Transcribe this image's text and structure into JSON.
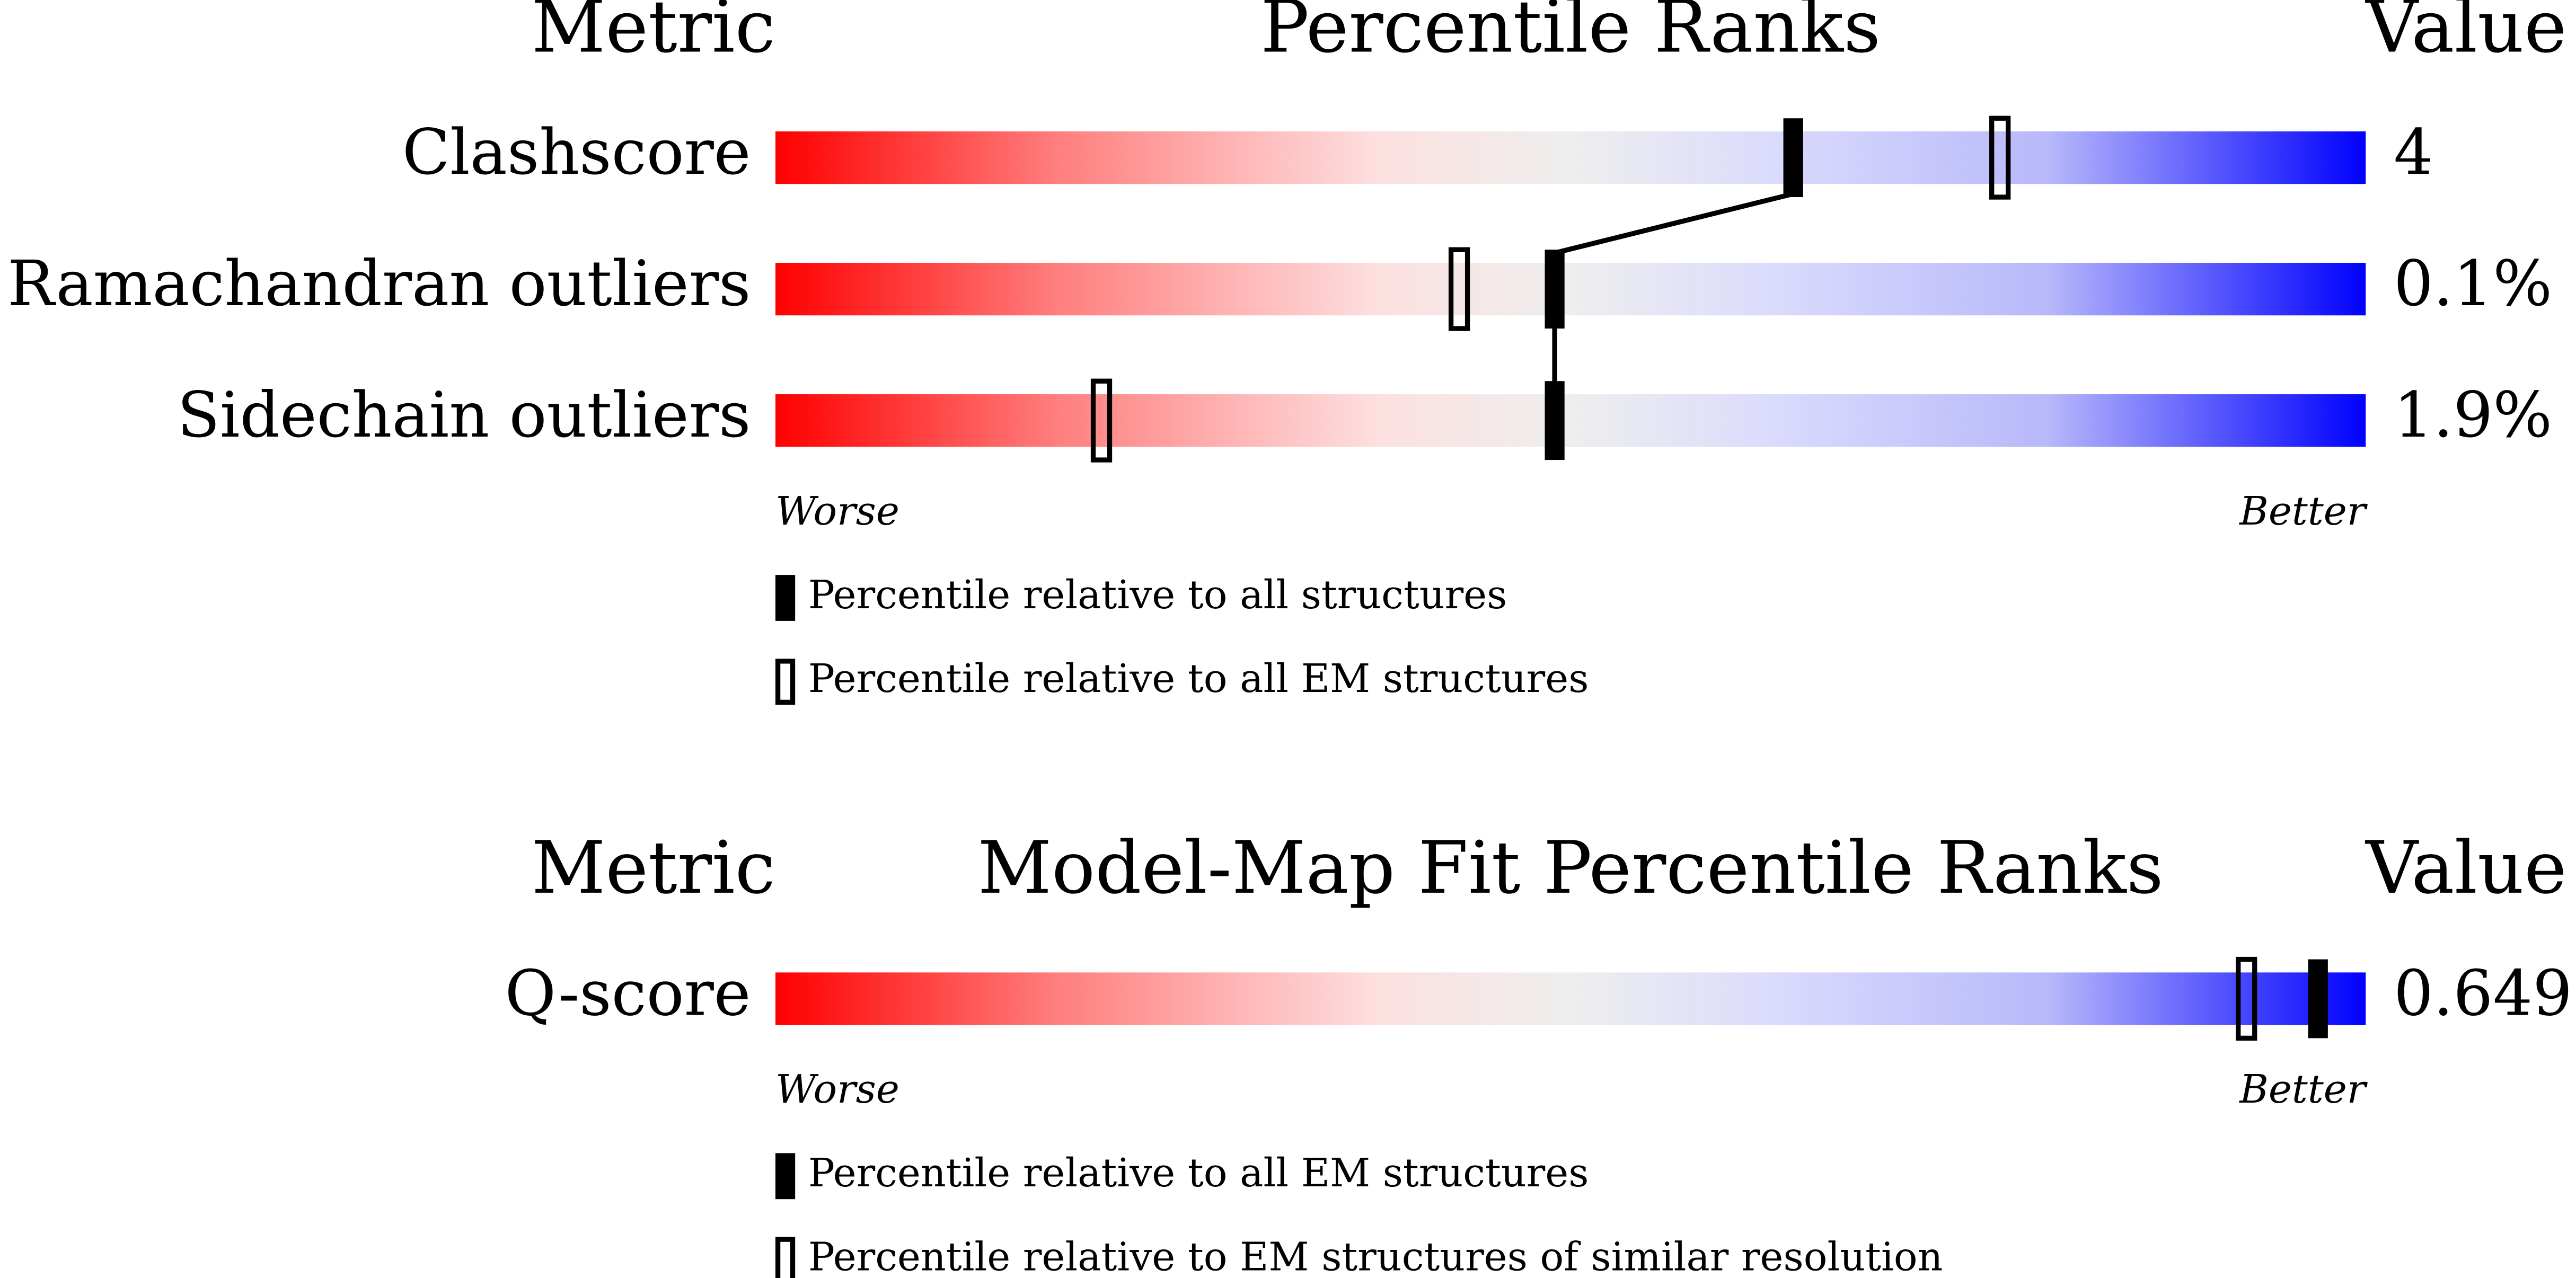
{
  "chart_data": [
    {
      "type": "percentile-slider",
      "header": {
        "metric": "Metric",
        "title": "Percentile Ranks",
        "value": "Value"
      },
      "rows": [
        {
          "metric": "Clashscore",
          "value": "4",
          "percentile_all": 64,
          "percentile_em": 77
        },
        {
          "metric": "Ramachandran outliers",
          "value": "0.1%",
          "percentile_all": 49,
          "percentile_em": 43
        },
        {
          "metric": "Sidechain outliers",
          "value": "1.9%",
          "percentile_all": 49,
          "percentile_em": 20.5
        }
      ],
      "xlim": [
        0,
        100
      ],
      "scale": {
        "worse": "Worse",
        "better": "Better"
      },
      "legend": {
        "filled": "Percentile relative to all structures",
        "open": "Percentile relative to all EM structures"
      }
    },
    {
      "type": "percentile-slider",
      "header": {
        "metric": "Metric",
        "title": "Model-Map Fit Percentile Ranks",
        "value": "Value"
      },
      "rows": [
        {
          "metric": "Q-score",
          "value": "0.649",
          "percentile_all": 97,
          "percentile_em": 92.5
        }
      ],
      "xlim": [
        0,
        100
      ],
      "scale": {
        "worse": "Worse",
        "better": "Better"
      },
      "legend": {
        "filled": "Percentile relative to all EM structures",
        "open": "Percentile relative to EM structures of similar resolution"
      }
    }
  ]
}
